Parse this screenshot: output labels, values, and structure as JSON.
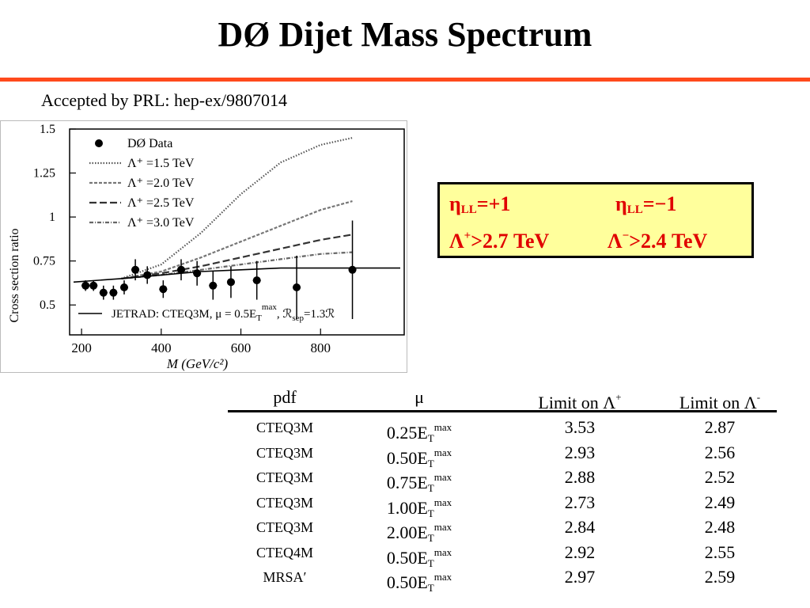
{
  "title": "DØ Dijet Mass Spectrum",
  "subtitle": "Accepted by PRL: hep-ex/9807014",
  "colors": {
    "rule": "#ff4a1c",
    "box_bg": "#ffff9c",
    "box_text": "#e00000"
  },
  "limits_box": {
    "eta_pos": "η",
    "eta_pos_sub": "LL",
    "eta_pos_val": "=+1",
    "eta_neg": "η",
    "eta_neg_sub": "LL",
    "eta_neg_val": "=−1",
    "lam_pos": "Λ",
    "lam_pos_sup": "+",
    "lam_pos_val": ">2.7 TeV",
    "lam_neg": "Λ",
    "lam_neg_sup": "−",
    "lam_neg_val": ">2.4 TeV"
  },
  "chart_data": {
    "type": "scatter",
    "xlabel": "M (GeV/c²)",
    "ylabel": "Cross section ratio",
    "xlim": [
      170,
      1010
    ],
    "ylim": [
      0.33,
      1.5
    ],
    "xticks": [
      "200",
      "400",
      "600",
      "800"
    ],
    "xtick_values": [
      200,
      400,
      600,
      800
    ],
    "yticks": [
      "1.5",
      "1.25",
      "1",
      "0.75",
      "0.5"
    ],
    "ytick_values": [
      1.5,
      1.25,
      1.0,
      0.75,
      0.5
    ],
    "legend_placement": "top-left",
    "legend": [
      {
        "label": "DØ Data",
        "style": "marker"
      },
      {
        "label": "Λ⁺ =1.5 TeV",
        "style": "dotted"
      },
      {
        "label": "Λ⁺ =2.0 TeV",
        "style": "dashed-fine"
      },
      {
        "label": "Λ⁺ =2.5 TeV",
        "style": "dashed"
      },
      {
        "label": "Λ⁺ =3.0 TeV",
        "style": "dash-dot"
      }
    ],
    "baseline_label": "JETRAD: CTEQ3M,  μ = 0.5E",
    "baseline_label_sub": "T",
    "baseline_label_sup": "max",
    "baseline_label_tail": ",  ℛ",
    "baseline_label_tail_sub": "sep",
    "baseline_label_tail2": "=1.3ℛ",
    "data_points": [
      {
        "x": 210,
        "y": 0.61,
        "err": 0.03
      },
      {
        "x": 230,
        "y": 0.61,
        "err": 0.03
      },
      {
        "x": 255,
        "y": 0.57,
        "err": 0.04
      },
      {
        "x": 280,
        "y": 0.57,
        "err": 0.04
      },
      {
        "x": 307,
        "y": 0.6,
        "err": 0.04
      },
      {
        "x": 335,
        "y": 0.7,
        "err": 0.06
      },
      {
        "x": 365,
        "y": 0.67,
        "err": 0.05
      },
      {
        "x": 405,
        "y": 0.59,
        "err": 0.05
      },
      {
        "x": 450,
        "y": 0.7,
        "err": 0.06
      },
      {
        "x": 490,
        "y": 0.68,
        "err": 0.07
      },
      {
        "x": 530,
        "y": 0.61,
        "err": 0.08
      },
      {
        "x": 575,
        "y": 0.63,
        "err": 0.09
      },
      {
        "x": 640,
        "y": 0.64,
        "err": 0.11
      },
      {
        "x": 740,
        "y": 0.6,
        "err": 0.18
      },
      {
        "x": 880,
        "y": 0.7,
        "err": 0.28
      }
    ],
    "series": [
      {
        "name": "Λ⁺ =1.5 TeV",
        "x": [
          300,
          400,
          500,
          600,
          700,
          800,
          880
        ],
        "y": [
          0.65,
          0.73,
          0.91,
          1.13,
          1.31,
          1.41,
          1.45
        ]
      },
      {
        "name": "Λ⁺ =2.0 TeV",
        "x": [
          300,
          400,
          500,
          600,
          700,
          800,
          880
        ],
        "y": [
          0.65,
          0.69,
          0.77,
          0.86,
          0.95,
          1.04,
          1.09
        ]
      },
      {
        "name": "Λ⁺ =2.5 TeV",
        "x": [
          300,
          400,
          500,
          600,
          700,
          800,
          880
        ],
        "y": [
          0.65,
          0.68,
          0.72,
          0.77,
          0.82,
          0.87,
          0.9
        ]
      },
      {
        "name": "Λ⁺ =3.0 TeV",
        "x": [
          300,
          400,
          500,
          600,
          700,
          800,
          880
        ],
        "y": [
          0.65,
          0.67,
          0.7,
          0.73,
          0.76,
          0.79,
          0.8
        ]
      },
      {
        "name": "JETRAD",
        "x": [
          180,
          300,
          400,
          500,
          600,
          700,
          800,
          1000
        ],
        "y": [
          0.63,
          0.65,
          0.67,
          0.69,
          0.7,
          0.71,
          0.71,
          0.71
        ]
      }
    ]
  },
  "table": {
    "headers": {
      "pdf": "pdf",
      "mu": "μ",
      "limit_pos": "Limit on Λ",
      "limit_pos_sup": "+",
      "limit_neg": "Limit on Λ",
      "limit_neg_sup": "-"
    },
    "mu_prefix_sub": "T",
    "mu_prefix_sup": "max",
    "rows": [
      {
        "pdf": "CTEQ3M",
        "mu": "0.25E",
        "pos": "3.53",
        "neg": "2.87"
      },
      {
        "pdf": "CTEQ3M",
        "mu": "0.50E",
        "pos": "2.93",
        "neg": "2.56"
      },
      {
        "pdf": "CTEQ3M",
        "mu": "0.75E",
        "pos": "2.88",
        "neg": "2.52"
      },
      {
        "pdf": "CTEQ3M",
        "mu": "1.00E",
        "pos": "2.73",
        "neg": "2.49"
      },
      {
        "pdf": "CTEQ3M",
        "mu": "2.00E",
        "pos": "2.84",
        "neg": "2.48"
      },
      {
        "pdf": "CTEQ4M",
        "mu": "0.50E",
        "pos": "2.92",
        "neg": "2.55"
      },
      {
        "pdf": "MRSA′",
        "mu": "0.50E",
        "pos": "2.97",
        "neg": "2.59"
      }
    ]
  }
}
